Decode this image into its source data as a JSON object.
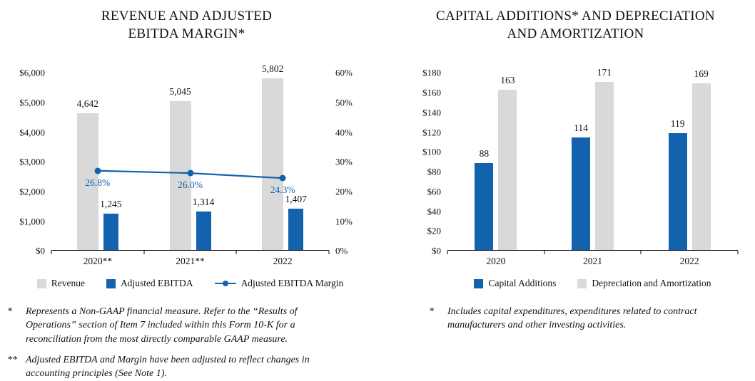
{
  "colors": {
    "blue": "#1262ae",
    "gray": "#d9d9d9",
    "axis": "#000000",
    "text": "#111111"
  },
  "chart_data": [
    {
      "type": "bar",
      "title": "REVENUE AND ADJUSTED EBITDA MARGIN*",
      "title_lines": [
        "REVENUE AND ADJUSTED",
        "EBITDA MARGIN*"
      ],
      "categories": [
        "2020**",
        "2021**",
        "2022"
      ],
      "series": [
        {
          "name": "Revenue",
          "type": "bar",
          "color": "#d9d9d9",
          "values": [
            4642,
            5045,
            5802
          ],
          "labels": [
            "4,642",
            "5,045",
            "5,802"
          ]
        },
        {
          "name": "Adjusted EBITDA",
          "type": "bar",
          "color": "#1262ae",
          "values": [
            1245,
            1314,
            1407
          ],
          "labels": [
            "1,245",
            "1,314",
            "1,407"
          ]
        },
        {
          "name": "Adjusted EBITDA Margin",
          "type": "line",
          "axis": "right",
          "color": "#1262ae",
          "values": [
            26.8,
            26.0,
            24.3
          ],
          "labels": [
            "26.8%",
            "26.0%",
            "24.3%"
          ]
        }
      ],
      "left_axis": {
        "min": 0,
        "max": 6000,
        "step": 1000,
        "tick_labels": [
          "$0",
          "$1,000",
          "$2,000",
          "$3,000",
          "$4,000",
          "$5,000",
          "$6,000"
        ]
      },
      "right_axis": {
        "min": 0,
        "max": 60,
        "step": 10,
        "tick_labels": [
          "0%",
          "10%",
          "20%",
          "30%",
          "40%",
          "50%",
          "60%"
        ]
      },
      "grid": false,
      "legend_position": "bottom",
      "axis_color": "#000000",
      "footnotes": [
        {
          "marker": "*",
          "text": "Represents a Non-GAAP financial measure. Refer to the “Results of Operations” section of Item 7 included within this Form 10-K for a reconciliation from the most directly comparable GAAP measure."
        },
        {
          "marker": "**",
          "text": "Adjusted EBITDA and Margin have been adjusted to reflect changes in accounting principles (See Note 1)."
        }
      ]
    },
    {
      "type": "bar",
      "title": "CAPITAL ADDITIONS* AND DEPRECIATION AND AMORTIZATION",
      "title_lines": [
        "CAPITAL ADDITIONS* AND DEPRECIATION",
        "AND AMORTIZATION"
      ],
      "categories": [
        "2020",
        "2021",
        "2022"
      ],
      "series": [
        {
          "name": "Capital Additions",
          "type": "bar",
          "color": "#1262ae",
          "values": [
            88,
            114,
            119
          ],
          "labels": [
            "88",
            "114",
            "119"
          ]
        },
        {
          "name": "Depreciation and Amortization",
          "type": "bar",
          "color": "#d9d9d9",
          "values": [
            163,
            171,
            169
          ],
          "labels": [
            "163",
            "171",
            "169"
          ]
        }
      ],
      "left_axis": {
        "min": 0,
        "max": 180,
        "step": 20,
        "tick_labels": [
          "$0",
          "$20",
          "$40",
          "$60",
          "$80",
          "$100",
          "$120",
          "$140",
          "$160",
          "$180"
        ]
      },
      "grid": false,
      "legend_position": "bottom",
      "axis_color": "#000000",
      "footnotes": [
        {
          "marker": "*",
          "text": "Includes capital expenditures, expenditures related to contract manufacturers and other investing activities."
        }
      ]
    }
  ]
}
